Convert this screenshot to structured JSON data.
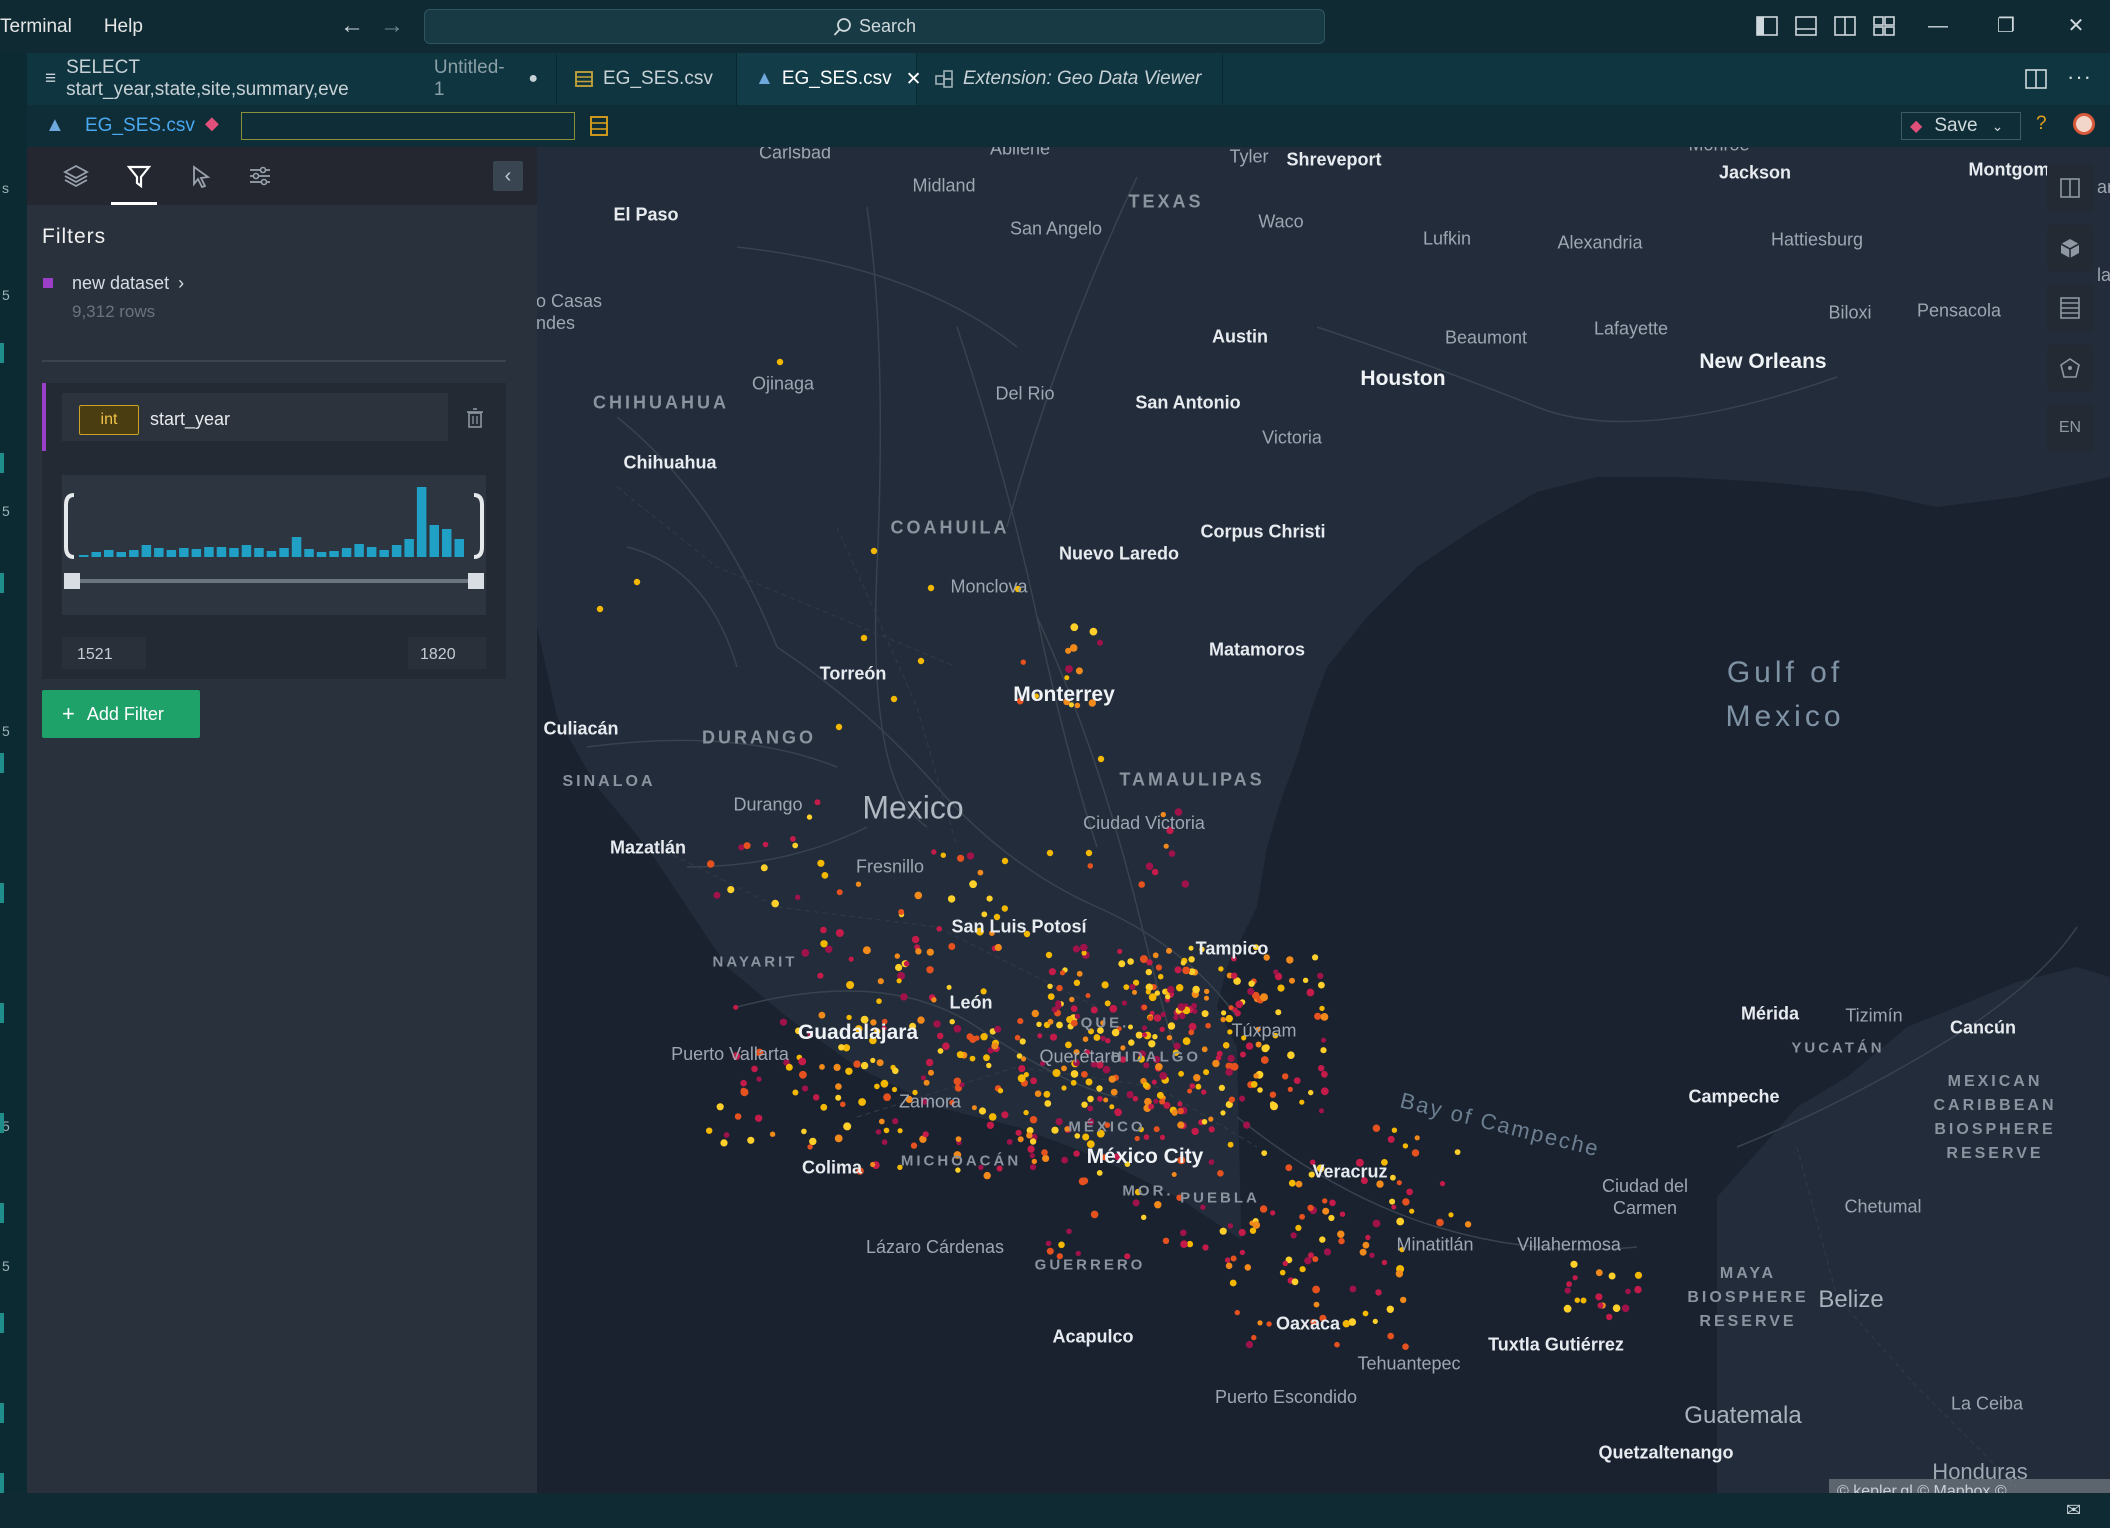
{
  "menu": [
    "Terminal",
    "Help"
  ],
  "search": {
    "label": "Search"
  },
  "tabs": [
    {
      "label": "SELECT start_year,state,site,summary,eve",
      "suffix": "Untitled-1",
      "dirty": "●",
      "icon": "list-icon"
    },
    {
      "label": "EG_SES.csv",
      "icon": "table-icon"
    },
    {
      "label": "EG_SES.csv",
      "icon": "map-icon",
      "close": "✕"
    },
    {
      "label": "Extension: Geo Data Viewer",
      "icon": "extension-icon"
    }
  ],
  "toolbar": {
    "file_label": "EG_SES.csv",
    "input_value": "",
    "save_label": "Save",
    "help": "?"
  },
  "activity_numbers": [
    "5",
    "5",
    "5",
    "5",
    "5",
    "5"
  ],
  "panel": {
    "title": "Filters",
    "dataset": {
      "name": "new dataset",
      "rows": "9,312 rows",
      "color": "#9b3ec8"
    },
    "filter": {
      "type_badge": "int",
      "field": "start_year",
      "min": "1521",
      "max": "1820"
    },
    "histogram": [
      2,
      5,
      7,
      5,
      7,
      12,
      9,
      7,
      9,
      8,
      10,
      10,
      9,
      12,
      9,
      6,
      9,
      20,
      8,
      5,
      6,
      9,
      13,
      10,
      7,
      12,
      18,
      70,
      32,
      28,
      18
    ],
    "add_filter": "Add Filter"
  },
  "map": {
    "language": "EN",
    "attribution": "© kepler.gl © Mapbox © OpenStreetMap",
    "labels": {
      "texas": "TEXAS",
      "chihuahua_state": "CHIHUAHUA",
      "coahuila": "COAHUILA",
      "durango_state": "DURANGO",
      "sinaloa": "SINALOA",
      "tamaulipas": "TAMAULIPAS",
      "nayarit": "NAYARIT",
      "michoacan": "MICHOACÁN",
      "guerrero": "GUERRERO",
      "puebla": "PUEBLA",
      "hidalgo": "HIDALGO",
      "que": "QUE.",
      "mexico_state": "MÉXICO",
      "mor": "MOR.",
      "yucatan": "YUCATÁN",
      "mexico": "Mexico",
      "gulf": "Gulf of Mexico",
      "bay": "Bay of Campeche",
      "belize": "Belize",
      "guatemala": "Guatemala",
      "honduras": "Honduras",
      "maya": "MAYA BIOSPHERE RESERVE",
      "mcbr": "MEXICAN CARIBBEAN BIOSPHERE RESERVE",
      "carlsbad": "Carlsbad",
      "abilene": "Abilene",
      "midland": "Midland",
      "tyler": "Tyler",
      "shreveport": "Shreveport",
      "monroe": "Monroe",
      "jackson": "Jackson",
      "montgomery": "Montgom",
      "el_paso": "El Paso",
      "san_angelo": "San Angelo",
      "waco": "Waco",
      "lufkin": "Lufkin",
      "alexandria": "Alexandria",
      "hattiesburg": "Hattiesburg",
      "casas": "o Casas\nndes",
      "austin": "Austin",
      "beaumont": "Beaumont",
      "lafayette": "Lafayette",
      "biloxi": "Biloxi",
      "pensacola": "Pensacola",
      "new_orleans": "New Orleans",
      "houston": "Houston",
      "ojinaga": "Ojinaga",
      "del_rio": "Del Rio",
      "san_antonio": "San Antonio",
      "victoria": "Victoria",
      "chihuahua": "Chihuahua",
      "corpus": "Corpus Christi",
      "nuevo_laredo": "Nuevo Laredo",
      "monclova": "Monclova",
      "matamoros": "Matamoros",
      "torreon": "Torreón",
      "monterrey": "Monterrey",
      "culiacan": "Culiacán",
      "durango": "Durango",
      "ciudad_victoria": "Ciudad Victoria",
      "mazatlan": "Mazatlán",
      "fresnillo": "Fresnillo",
      "slp": "San Luis Potosí",
      "tampico": "Tampico",
      "leon": "León",
      "guadalajara": "Guadalajara",
      "puerto_vallarta": "Puerto Vallarta",
      "tuxpam": "Túxpam",
      "queretaro": "Querétaro",
      "zamora": "Zamora",
      "mexico_city": "México City",
      "colima": "Colima",
      "veracruz": "Veracruz",
      "lazaro": "Lázaro Cárdenas",
      "minatitlan": "Minatitlán",
      "villahermosa": "Villahermosa",
      "acapulco": "Acapulco",
      "oaxaca": "Oaxaca",
      "tuxtla": "Tuxtla Gutiérrez",
      "tehuantepec": "Tehuantepec",
      "puerto_escondido": "Puerto Escondido",
      "quetzaltenango": "Quetzaltenango",
      "merida": "Mérida",
      "tizimin": "Tizimín",
      "cancun": "Cancún",
      "campeche": "Campeche",
      "ciudad_carmen": "Ciudad del Carmen",
      "chetumal": "Chetumal",
      "la_ceiba": "La Ceiba"
    }
  }
}
